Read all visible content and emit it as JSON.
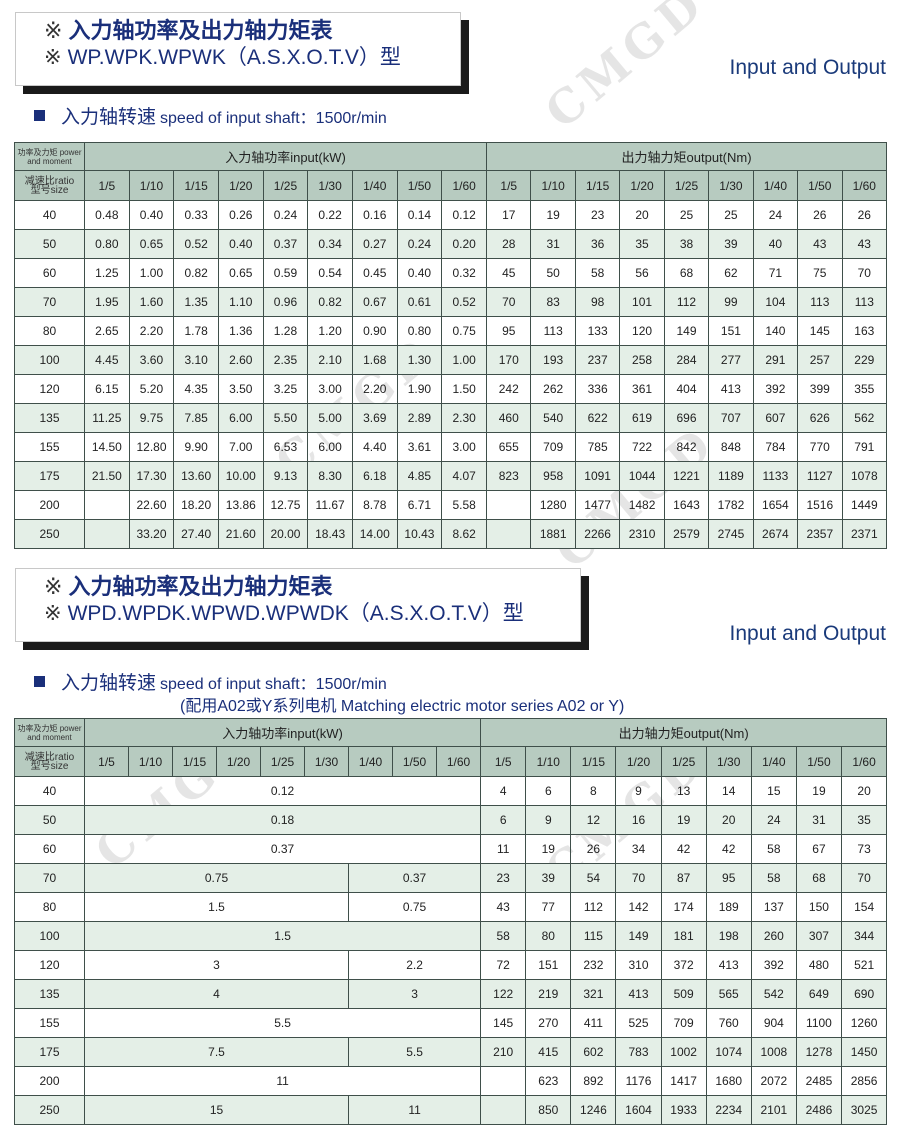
{
  "watermark": "CMGD",
  "section1": {
    "title_cn": "入力轴功率及出力轴力矩表",
    "title_en": "WP.WPK.WPWK（A.S.X.O.T.V）型",
    "mark": "※",
    "io_label": "Input and Output",
    "speed_cn": "入力轴转速",
    "speed_en": "speed of input shaft：1500r/min",
    "table": {
      "corner_top": "功率及力矩 power and moment",
      "corner_ratio": "减速比ratio",
      "corner_size": "型号size",
      "input_header": "入力轴功率input(kW)",
      "output_header": "出力轴力矩output(Nm)",
      "ratios": [
        "1/5",
        "1/10",
        "1/15",
        "1/20",
        "1/25",
        "1/30",
        "1/40",
        "1/50",
        "1/60"
      ],
      "rows": [
        {
          "size": "40",
          "input": [
            "0.48",
            "0.40",
            "0.33",
            "0.26",
            "0.24",
            "0.22",
            "0.16",
            "0.14",
            "0.12"
          ],
          "output": [
            "17",
            "19",
            "23",
            "20",
            "25",
            "25",
            "24",
            "26",
            "26"
          ]
        },
        {
          "size": "50",
          "input": [
            "0.80",
            "0.65",
            "0.52",
            "0.40",
            "0.37",
            "0.34",
            "0.27",
            "0.24",
            "0.20"
          ],
          "output": [
            "28",
            "31",
            "36",
            "35",
            "38",
            "39",
            "40",
            "43",
            "43"
          ]
        },
        {
          "size": "60",
          "input": [
            "1.25",
            "1.00",
            "0.82",
            "0.65",
            "0.59",
            "0.54",
            "0.45",
            "0.40",
            "0.32"
          ],
          "output": [
            "45",
            "50",
            "58",
            "56",
            "68",
            "62",
            "71",
            "75",
            "70"
          ]
        },
        {
          "size": "70",
          "input": [
            "1.95",
            "1.60",
            "1.35",
            "1.10",
            "0.96",
            "0.82",
            "0.67",
            "0.61",
            "0.52"
          ],
          "output": [
            "70",
            "83",
            "98",
            "101",
            "112",
            "99",
            "104",
            "113",
            "113"
          ]
        },
        {
          "size": "80",
          "input": [
            "2.65",
            "2.20",
            "1.78",
            "1.36",
            "1.28",
            "1.20",
            "0.90",
            "0.80",
            "0.75"
          ],
          "output": [
            "95",
            "113",
            "133",
            "120",
            "149",
            "151",
            "140",
            "145",
            "163"
          ]
        },
        {
          "size": "100",
          "input": [
            "4.45",
            "3.60",
            "3.10",
            "2.60",
            "2.35",
            "2.10",
            "1.68",
            "1.30",
            "1.00"
          ],
          "output": [
            "170",
            "193",
            "237",
            "258",
            "284",
            "277",
            "291",
            "257",
            "229"
          ]
        },
        {
          "size": "120",
          "input": [
            "6.15",
            "5.20",
            "4.35",
            "3.50",
            "3.25",
            "3.00",
            "2.20",
            "1.90",
            "1.50"
          ],
          "output": [
            "242",
            "262",
            "336",
            "361",
            "404",
            "413",
            "392",
            "399",
            "355"
          ]
        },
        {
          "size": "135",
          "input": [
            "11.25",
            "9.75",
            "7.85",
            "6.00",
            "5.50",
            "5.00",
            "3.69",
            "2.89",
            "2.30"
          ],
          "output": [
            "460",
            "540",
            "622",
            "619",
            "696",
            "707",
            "607",
            "626",
            "562"
          ]
        },
        {
          "size": "155",
          "input": [
            "14.50",
            "12.80",
            "9.90",
            "7.00",
            "6.53",
            "6.00",
            "4.40",
            "3.61",
            "3.00"
          ],
          "output": [
            "655",
            "709",
            "785",
            "722",
            "842",
            "848",
            "784",
            "770",
            "791"
          ]
        },
        {
          "size": "175",
          "input": [
            "21.50",
            "17.30",
            "13.60",
            "10.00",
            "9.13",
            "8.30",
            "6.18",
            "4.85",
            "4.07"
          ],
          "output": [
            "823",
            "958",
            "1091",
            "1044",
            "1221",
            "1189",
            "1133",
            "1127",
            "1078"
          ]
        },
        {
          "size": "200",
          "input": [
            "",
            "22.60",
            "18.20",
            "13.86",
            "12.75",
            "11.67",
            "8.78",
            "6.71",
            "5.58"
          ],
          "output": [
            "",
            "1280",
            "1477",
            "1482",
            "1643",
            "1782",
            "1654",
            "1516",
            "1449"
          ]
        },
        {
          "size": "250",
          "input": [
            "",
            "33.20",
            "27.40",
            "21.60",
            "20.00",
            "18.43",
            "14.00",
            "10.43",
            "8.62"
          ],
          "output": [
            "",
            "1881",
            "2266",
            "2310",
            "2579",
            "2745",
            "2674",
            "2357",
            "2371"
          ]
        }
      ]
    }
  },
  "section2": {
    "title_cn": "入力轴功率及出力轴力矩表",
    "title_en": "WPD.WPDK.WPWD.WPWDK（A.S.X.O.T.V）型",
    "mark": "※",
    "io_label": "Input and Output",
    "speed_cn": "入力轴转速",
    "speed_en": "speed of input shaft：1500r/min",
    "motor_note": "(配用A02或Y系列电机 Matching electric motor series A02 or Y)",
    "table": {
      "corner_top": "功率及力矩 power and moment",
      "corner_ratio": "减速比ratio",
      "corner_size": "型号size",
      "input_header": "入力轴功率input(kW)",
      "output_header": "出力轴力矩output(Nm)",
      "ratios": [
        "1/5",
        "1/10",
        "1/15",
        "1/20",
        "1/25",
        "1/30",
        "1/40",
        "1/50",
        "1/60"
      ],
      "rows": [
        {
          "size": "40",
          "input": [
            {
              "value": "0.12",
              "span": 9
            }
          ],
          "output": [
            "4",
            "6",
            "8",
            "9",
            "13",
            "14",
            "15",
            "19",
            "20"
          ]
        },
        {
          "size": "50",
          "input": [
            {
              "value": "0.18",
              "span": 9
            }
          ],
          "output": [
            "6",
            "9",
            "12",
            "16",
            "19",
            "20",
            "24",
            "31",
            "35"
          ]
        },
        {
          "size": "60",
          "input": [
            {
              "value": "0.37",
              "span": 9
            }
          ],
          "output": [
            "11",
            "19",
            "26",
            "34",
            "42",
            "42",
            "58",
            "67",
            "73"
          ]
        },
        {
          "size": "70",
          "input": [
            {
              "value": "0.75",
              "span": 6
            },
            {
              "value": "0.37",
              "span": 3
            }
          ],
          "output": [
            "23",
            "39",
            "54",
            "70",
            "87",
            "95",
            "58",
            "68",
            "70"
          ]
        },
        {
          "size": "80",
          "input": [
            {
              "value": "1.5",
              "span": 6
            },
            {
              "value": "0.75",
              "span": 3
            }
          ],
          "output": [
            "43",
            "77",
            "112",
            "142",
            "174",
            "189",
            "137",
            "150",
            "154"
          ]
        },
        {
          "size": "100",
          "input": [
            {
              "value": "1.5",
              "span": 9
            }
          ],
          "output": [
            "58",
            "80",
            "115",
            "149",
            "181",
            "198",
            "260",
            "307",
            "344"
          ]
        },
        {
          "size": "120",
          "input": [
            {
              "value": "3",
              "span": 6
            },
            {
              "value": "2.2",
              "span": 3
            }
          ],
          "output": [
            "72",
            "151",
            "232",
            "310",
            "372",
            "413",
            "392",
            "480",
            "521"
          ]
        },
        {
          "size": "135",
          "input": [
            {
              "value": "4",
              "span": 6
            },
            {
              "value": "3",
              "span": 3
            }
          ],
          "output": [
            "122",
            "219",
            "321",
            "413",
            "509",
            "565",
            "542",
            "649",
            "690"
          ]
        },
        {
          "size": "155",
          "input": [
            {
              "value": "5.5",
              "span": 9
            }
          ],
          "output": [
            "145",
            "270",
            "411",
            "525",
            "709",
            "760",
            "904",
            "1100",
            "1260"
          ]
        },
        {
          "size": "175",
          "input": [
            {
              "value": "7.5",
              "span": 6
            },
            {
              "value": "5.5",
              "span": 3
            }
          ],
          "output": [
            "210",
            "415",
            "602",
            "783",
            "1002",
            "1074",
            "1008",
            "1278",
            "1450"
          ]
        },
        {
          "size": "200",
          "input": [
            {
              "value": "11",
              "span": 9
            }
          ],
          "output": [
            "",
            "623",
            "892",
            "1176",
            "1417",
            "1680",
            "2072",
            "2485",
            "2856"
          ]
        },
        {
          "size": "250",
          "input": [
            {
              "value": "15",
              "span": 6
            },
            {
              "value": "11",
              "span": 3
            }
          ],
          "output": [
            "",
            "850",
            "1246",
            "1604",
            "1933",
            "2234",
            "2101",
            "2486",
            "3025"
          ]
        }
      ]
    }
  }
}
